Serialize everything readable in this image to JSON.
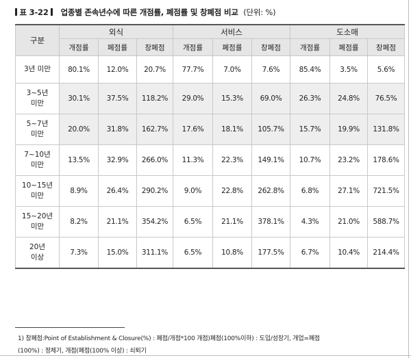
{
  "title": {
    "tag": "표 3-22",
    "main": "업종별 존속년수에 따른 개점률, 폐점률 및 창폐점 비교",
    "unit": "(단위: %)"
  },
  "table": {
    "corner": "구분",
    "groups": [
      "외식",
      "서비스",
      "도소매"
    ],
    "subheaders": [
      "개점률",
      "폐점률",
      "창폐점",
      "개점률",
      "폐점률",
      "창폐점",
      "개점률",
      "폐점률",
      "창폐점"
    ],
    "rows": [
      {
        "label": [
          "3년 미만"
        ],
        "values": [
          "80.1%",
          "12.0%",
          "20.7%",
          "77.7%",
          "7.0%",
          "7.6%",
          "85.4%",
          "3.5%",
          "5.6%"
        ]
      },
      {
        "label": [
          "3~5년",
          "미만"
        ],
        "values": [
          "30.1%",
          "37.5%",
          "118.2%",
          "29.0%",
          "15.3%",
          "69.0%",
          "26.3%",
          "24.8%",
          "76.5%"
        ]
      },
      {
        "label": [
          "5~7년",
          "미만"
        ],
        "values": [
          "20.0%",
          "31.8%",
          "162.7%",
          "17.6%",
          "18.1%",
          "105.7%",
          "15.7%",
          "19.9%",
          "131.8%"
        ]
      },
      {
        "label": [
          "7~10년",
          "미만"
        ],
        "values": [
          "13.5%",
          "32.9%",
          "266.0%",
          "11.3%",
          "22.3%",
          "149.1%",
          "10.7%",
          "23.2%",
          "178.6%"
        ]
      },
      {
        "label": [
          "10~15년",
          "미만"
        ],
        "values": [
          "8.9%",
          "26.4%",
          "290.2%",
          "9.0%",
          "22.8%",
          "262.8%",
          "6.8%",
          "27.1%",
          "721.5%"
        ]
      },
      {
        "label": [
          "15~20년",
          "미만"
        ],
        "values": [
          "8.2%",
          "21.1%",
          "354.2%",
          "6.5%",
          "21.1%",
          "378.1%",
          "4.3%",
          "21.0%",
          "588.7%"
        ]
      },
      {
        "label": [
          "20년",
          "이상"
        ],
        "values": [
          "7.3%",
          "15.0%",
          "311.1%",
          "6.5%",
          "10.8%",
          "177.5%",
          "6.7%",
          "10.4%",
          "214.4%"
        ]
      }
    ],
    "shaded_rows": [
      1,
      2
    ],
    "shaded_color": "#eeeeee"
  },
  "footnote": {
    "line1": "1)  창폐점:Point of Establishment & Closure(%) : 폐점/개점*100 개점)폐점(100%이하) : 도입/성장기, 개업=폐점",
    "line2": "(100%) : 정체기, 개점(폐점(100% 이상) : 쇠퇴기"
  }
}
